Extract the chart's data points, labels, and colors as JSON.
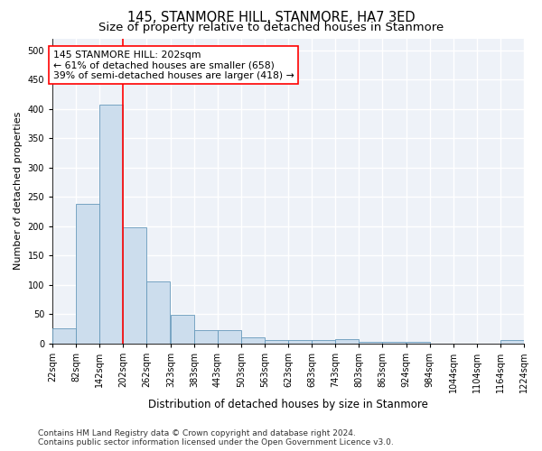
{
  "title": "145, STANMORE HILL, STANMORE, HA7 3ED",
  "subtitle": "Size of property relative to detached houses in Stanmore",
  "xlabel": "Distribution of detached houses by size in Stanmore",
  "ylabel": "Number of detached properties",
  "bar_color": "#ccdded",
  "bar_edge_color": "#6699bb",
  "vline_x": 202,
  "vline_color": "red",
  "annotation_text": "145 STANMORE HILL: 202sqm\n← 61% of detached houses are smaller (658)\n39% of semi-detached houses are larger (418) →",
  "annotation_box_color": "white",
  "annotation_box_edge_color": "red",
  "bins_left": [
    22,
    82,
    142,
    202,
    262,
    323,
    383,
    443,
    503,
    563,
    623,
    683,
    743,
    803,
    863,
    924,
    984,
    1044,
    1104,
    1164
  ],
  "bin_width": 60,
  "bar_heights": [
    25,
    237,
    407,
    197,
    105,
    48,
    23,
    23,
    10,
    5,
    5,
    5,
    7,
    2,
    2,
    2,
    0,
    0,
    0,
    5
  ],
  "ylim": [
    0,
    520
  ],
  "xlim": [
    22,
    1224
  ],
  "yticks": [
    0,
    50,
    100,
    150,
    200,
    250,
    300,
    350,
    400,
    450,
    500
  ],
  "xtick_labels": [
    "22sqm",
    "82sqm",
    "142sqm",
    "202sqm",
    "262sqm",
    "323sqm",
    "383sqm",
    "443sqm",
    "503sqm",
    "563sqm",
    "623sqm",
    "683sqm",
    "743sqm",
    "803sqm",
    "863sqm",
    "924sqm",
    "984sqm",
    "1044sqm",
    "1104sqm",
    "1164sqm",
    "1224sqm"
  ],
  "footer_text": "Contains HM Land Registry data © Crown copyright and database right 2024.\nContains public sector information licensed under the Open Government Licence v3.0.",
  "bg_color": "#eef2f8",
  "grid_color": "white",
  "title_fontsize": 10.5,
  "subtitle_fontsize": 9.5,
  "xlabel_fontsize": 8.5,
  "ylabel_fontsize": 8,
  "tick_fontsize": 7,
  "footer_fontsize": 6.5,
  "annotation_fontsize": 7.8
}
